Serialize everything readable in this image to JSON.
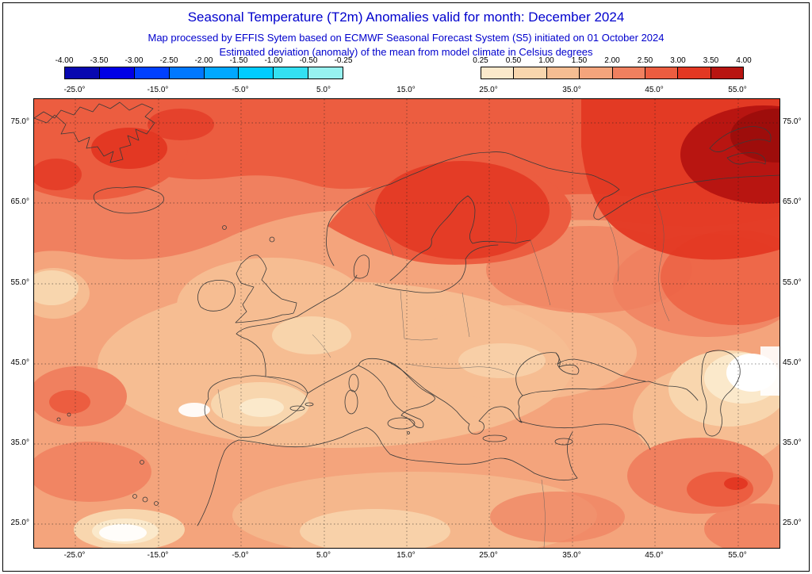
{
  "header": {
    "title": "Seasonal Temperature (T2m) Anomalies valid for month: December 2024",
    "subtitle1": "Map processed by EFFIS Sytem based on ECMWF Seasonal Forecast System (S5) initiated on 01 October 2024",
    "subtitle2": "Estimated deviation (anomaly) of the mean from model climate in Celsius degrees",
    "title_color": "#0000CD"
  },
  "colorbars": {
    "negative": {
      "labels": [
        "-4.00",
        "-3.50",
        "-3.00",
        "-2.50",
        "-2.00",
        "-1.50",
        "-1.00",
        "-0.50",
        "-0.25"
      ],
      "colors": [
        "#0808B0",
        "#0000E6",
        "#0040FF",
        "#0078FF",
        "#00A8FF",
        "#00CCFF",
        "#33E0F2",
        "#97F2F0"
      ]
    },
    "positive": {
      "labels": [
        "0.25",
        "0.50",
        "1.00",
        "1.50",
        "2.00",
        "2.50",
        "3.00",
        "3.50",
        "4.00"
      ],
      "colors": [
        "#FBE9CB",
        "#F8D6AE",
        "#F5BD92",
        "#F4A47C",
        "#F0805F",
        "#EC5D40",
        "#E33823",
        "#B81511"
      ]
    }
  },
  "map": {
    "lat_ticks": [
      "75.0°",
      "65.0°",
      "55.0°",
      "45.0°",
      "35.0°",
      "25.0°"
    ],
    "lon_ticks": [
      "-25.0°",
      "-15.0°",
      "-5.0°",
      "5.0°",
      "15.0°",
      "25.0°",
      "35.0°",
      "45.0°",
      "55.0°"
    ],
    "anomaly_spot_color": "#3FD9EA"
  }
}
